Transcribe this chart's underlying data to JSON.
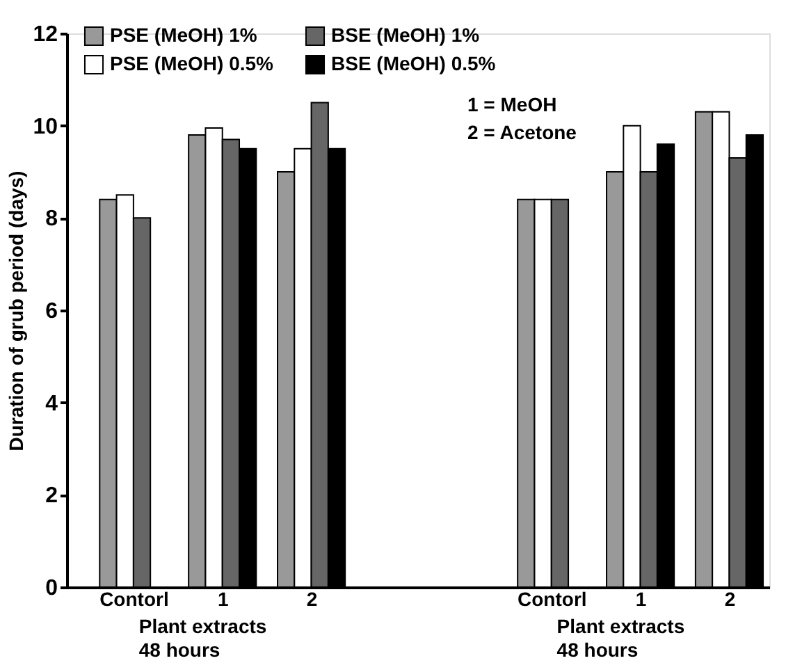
{
  "chart_data": {
    "type": "bar",
    "ylabel": "Duration of grub period (days)",
    "categories": [
      "Contorl",
      "1",
      "2",
      "Contorl",
      "1",
      "2"
    ],
    "series": [
      {
        "name": "PSE (MeOH) 1%",
        "color": "#999999",
        "values": [
          8.4,
          9.8,
          9.0,
          8.4,
          9.0,
          10.3
        ]
      },
      {
        "name": "PSE (MeOH) 0.5%",
        "color": "#ffffff",
        "values": [
          8.5,
          9.95,
          9.5,
          8.4,
          10.0,
          10.3
        ]
      },
      {
        "name": "BSE (MeOH) 1%",
        "color": "#666666",
        "values": [
          8.0,
          9.7,
          10.5,
          8.4,
          9.0,
          9.3
        ]
      },
      {
        "name": "BSE (MeOH) 0.5%",
        "color": "#000000",
        "values": [
          null,
          9.5,
          9.5,
          null,
          9.6,
          9.8
        ]
      }
    ],
    "ylim": [
      0,
      12
    ],
    "yticks": [
      0,
      2,
      4,
      6,
      8,
      10,
      12
    ],
    "grid": false,
    "legend": "top",
    "annotations": [
      "1 = MeOH",
      "2 = Acetone",
      "Plant extracts\n48 hours",
      "Plant extracts\n48 hours"
    ]
  }
}
